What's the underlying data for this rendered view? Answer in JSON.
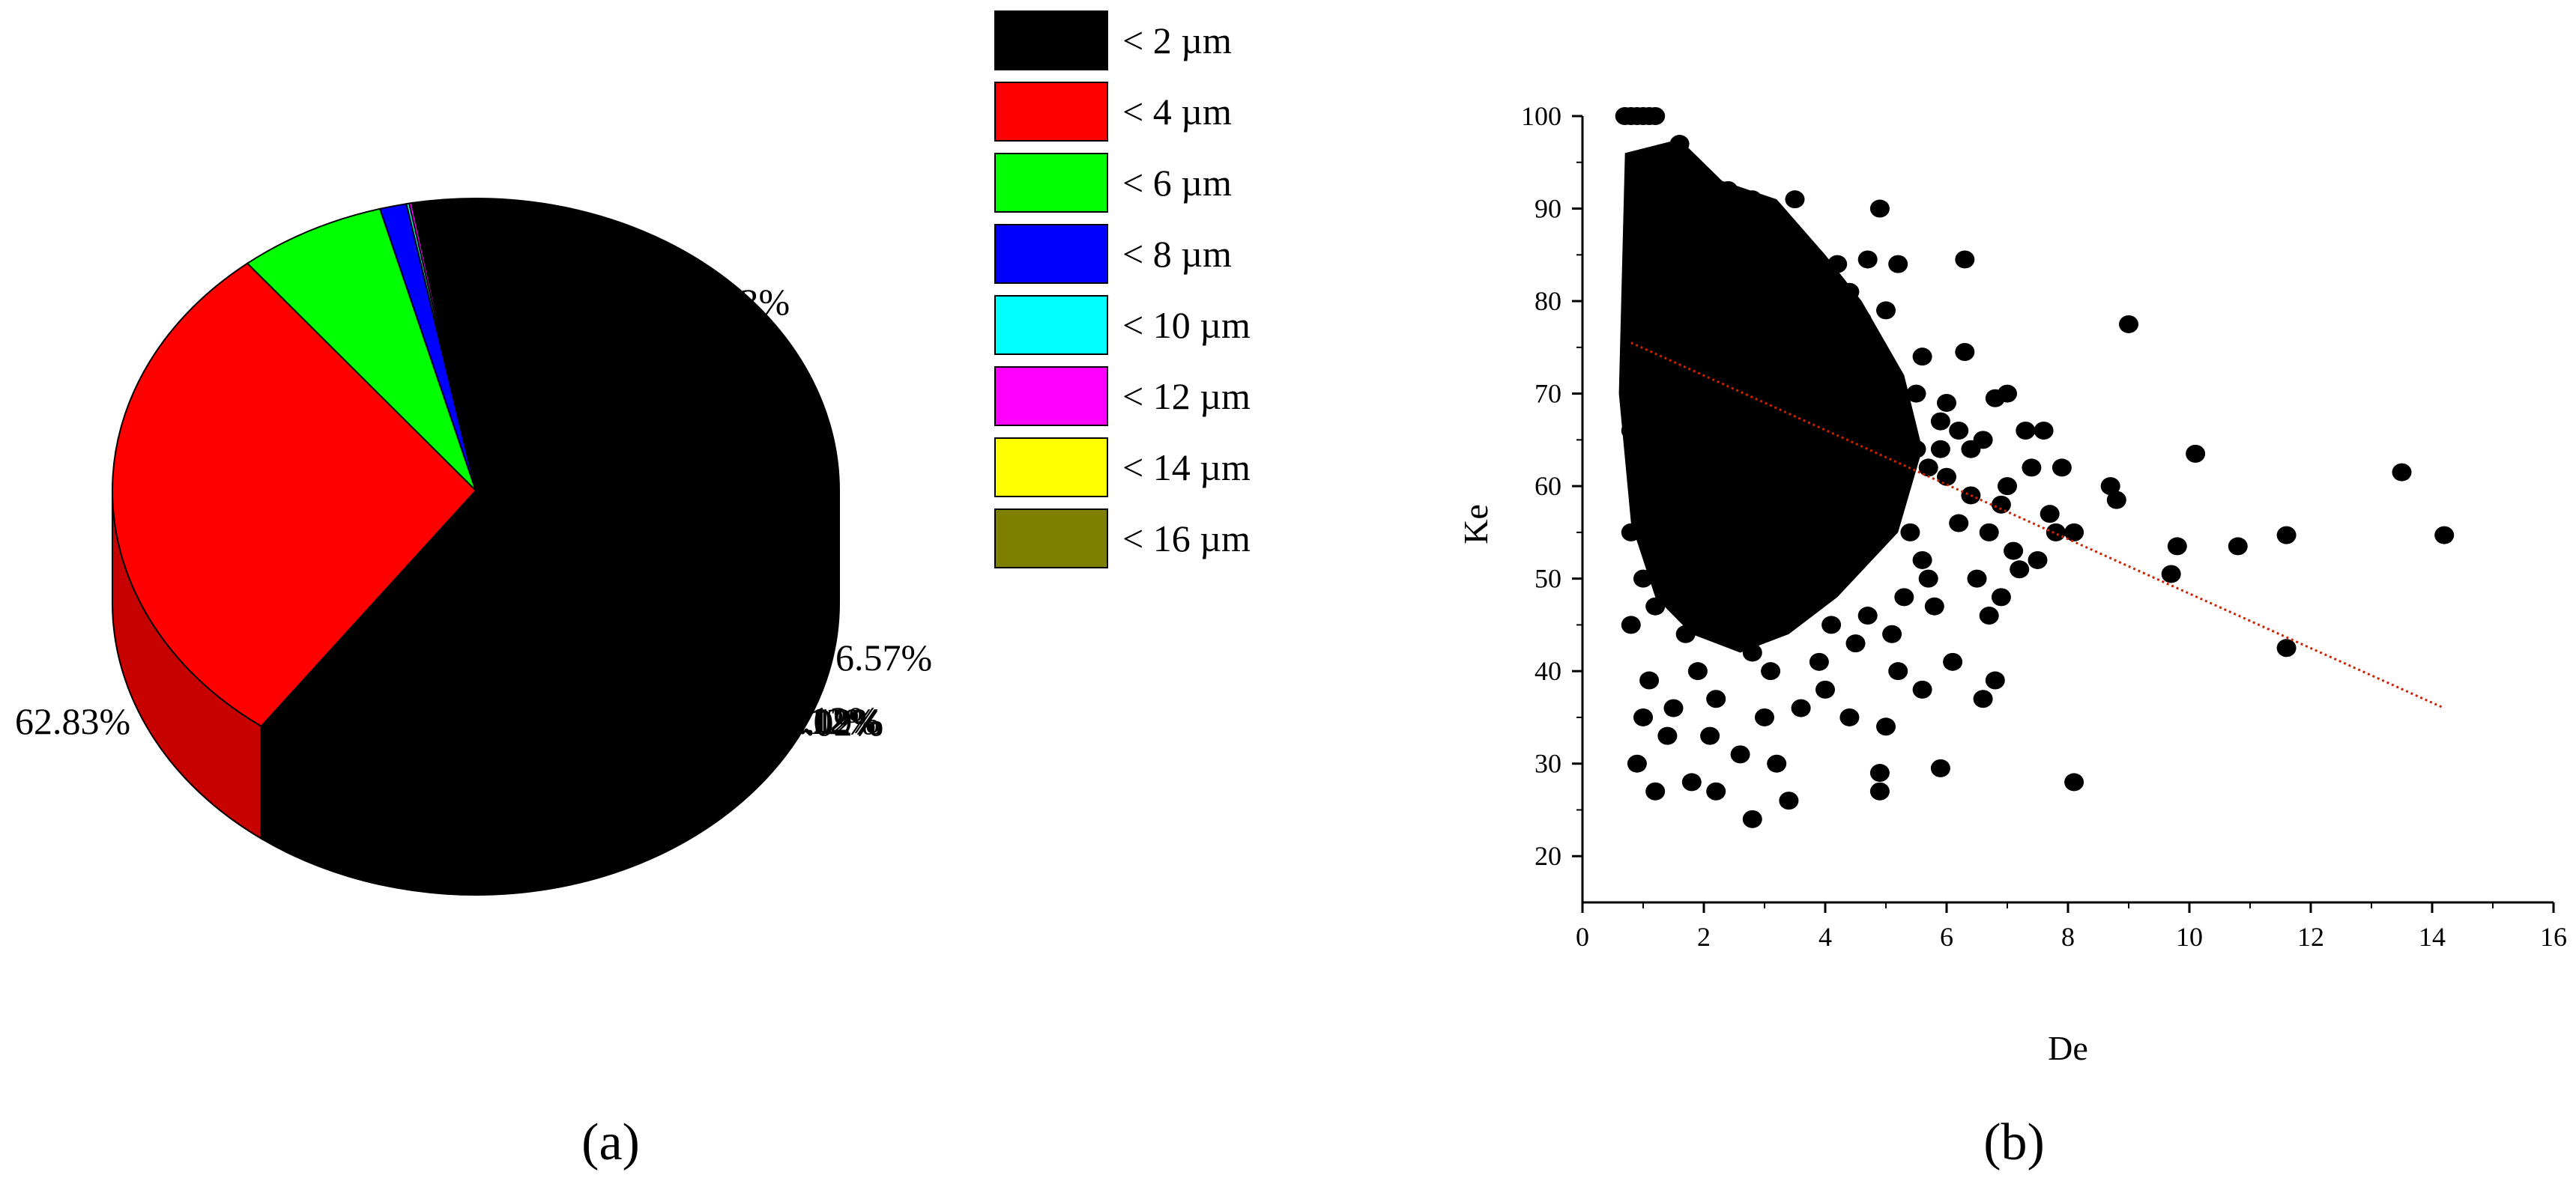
{
  "chart_data": [
    {
      "type": "pie",
      "title": "",
      "subplot_label": "(a)",
      "categories": [
        "< 2  µm",
        "< 4  µm",
        "< 6  µm",
        "< 8  µm",
        "< 10  µm",
        "< 12  µm",
        "< 14  µm",
        "< 16  µm"
      ],
      "values": [
        62.83,
        29.13,
        6.57,
        1.19,
        0.12,
        0.12,
        0.02,
        0.02
      ],
      "data_labels": [
        "62.83%",
        "29.13%",
        "6.57%",
        "1.19%",
        "0.12%",
        "0.12%",
        "0.02%",
        "0.02%"
      ],
      "colors": [
        "#000000",
        "#ff0000",
        "#00ff00",
        "#0000ff",
        "#00ffff",
        "#ff00ff",
        "#ffff00",
        "#808000"
      ],
      "style": "3d",
      "legend_position": "right"
    },
    {
      "type": "scatter",
      "title": "",
      "subplot_label": "(b)",
      "xlabel": "De",
      "ylabel": "Ke",
      "xlim": [
        0,
        16
      ],
      "ylim": [
        15,
        100
      ],
      "x_ticks": [
        "0",
        "2",
        "4",
        "6",
        "8",
        "10",
        "12",
        "14",
        "16"
      ],
      "y_ticks": [
        "20",
        "30",
        "40",
        "50",
        "60",
        "70",
        "80",
        "90",
        "100"
      ],
      "grid": false,
      "marker_color": "#000000",
      "trendline": {
        "x": [
          0.8,
          14.2
        ],
        "y": [
          75.5,
          36
        ],
        "color": "#cc2200",
        "style": "dotted"
      },
      "points": [
        [
          0.7,
          100
        ],
        [
          0.8,
          100
        ],
        [
          0.9,
          100
        ],
        [
          1.0,
          100
        ],
        [
          1.1,
          100
        ],
        [
          1.2,
          100
        ],
        [
          1.6,
          97
        ],
        [
          1.4,
          95
        ],
        [
          1.2,
          93
        ],
        [
          2.4,
          92
        ],
        [
          2.8,
          91
        ],
        [
          3.5,
          91
        ],
        [
          1.0,
          90
        ],
        [
          4.9,
          90
        ],
        [
          2.0,
          88
        ],
        [
          3.0,
          86
        ],
        [
          4.2,
          84
        ],
        [
          4.7,
          84.5
        ],
        [
          5.2,
          84
        ],
        [
          6.3,
          84.5
        ],
        [
          1.0,
          82
        ],
        [
          2.5,
          82
        ],
        [
          3.6,
          80
        ],
        [
          4.4,
          81
        ],
        [
          5.0,
          79
        ],
        [
          9.0,
          77.5
        ],
        [
          0.9,
          80
        ],
        [
          2.2,
          78
        ],
        [
          3.8,
          76
        ],
        [
          4.8,
          75
        ],
        [
          5.6,
          74
        ],
        [
          6.3,
          74.5
        ],
        [
          1.5,
          74
        ],
        [
          2.7,
          72
        ],
        [
          3.4,
          70
        ],
        [
          4.1,
          71
        ],
        [
          5.5,
          70
        ],
        [
          6.0,
          69
        ],
        [
          6.8,
          69.5
        ],
        [
          7.0,
          70
        ],
        [
          1.1,
          70
        ],
        [
          2.1,
          68
        ],
        [
          3.1,
          66
        ],
        [
          4.5,
          67
        ],
        [
          5.3,
          66
        ],
        [
          5.9,
          64
        ],
        [
          6.6,
          65
        ],
        [
          7.3,
          66
        ],
        [
          7.6,
          66
        ],
        [
          10.1,
          63.5
        ],
        [
          1.3,
          66.5
        ],
        [
          2.6,
          63
        ],
        [
          3.7,
          62
        ],
        [
          4.6,
          61
        ],
        [
          5.1,
          60
        ],
        [
          6.4,
          59
        ],
        [
          6.9,
          58
        ],
        [
          7.4,
          62
        ],
        [
          7.9,
          62
        ],
        [
          8.7,
          60
        ],
        [
          8.8,
          58.5
        ],
        [
          13.5,
          61.5
        ],
        [
          1.8,
          60
        ],
        [
          2.9,
          58
        ],
        [
          4.0,
          57
        ],
        [
          5.4,
          55
        ],
        [
          6.2,
          56
        ],
        [
          7.7,
          57
        ],
        [
          8.1,
          55
        ],
        [
          9.8,
          53.5
        ],
        [
          10.8,
          53.5
        ],
        [
          11.6,
          54.7
        ],
        [
          14.2,
          54.7
        ],
        [
          0.8,
          55
        ],
        [
          2.0,
          53
        ],
        [
          3.3,
          52
        ],
        [
          4.3,
          51
        ],
        [
          5.7,
          50
        ],
        [
          6.5,
          50
        ],
        [
          7.2,
          51
        ],
        [
          7.5,
          52
        ],
        [
          9.7,
          50.5
        ],
        [
          1.0,
          50
        ],
        [
          2.4,
          48
        ],
        [
          3.5,
          47
        ],
        [
          4.7,
          46
        ],
        [
          5.8,
          47
        ],
        [
          6.7,
          46
        ],
        [
          11.6,
          42.5
        ],
        [
          0.8,
          45
        ],
        [
          1.7,
          44
        ],
        [
          2.8,
          42
        ],
        [
          3.9,
          41
        ],
        [
          5.2,
          40
        ],
        [
          6.1,
          41
        ],
        [
          6.8,
          39
        ],
        [
          1.1,
          39
        ],
        [
          2.2,
          37
        ],
        [
          3.6,
          36
        ],
        [
          4.4,
          35
        ],
        [
          5.0,
          34
        ],
        [
          6.6,
          37
        ],
        [
          1.4,
          33
        ],
        [
          2.6,
          31
        ],
        [
          3.2,
          30
        ],
        [
          4.9,
          29
        ],
        [
          5.9,
          29.5
        ],
        [
          8.1,
          28
        ],
        [
          0.9,
          30
        ],
        [
          1.8,
          28
        ],
        [
          2.2,
          27
        ],
        [
          3.4,
          26
        ],
        [
          4.9,
          27
        ],
        [
          2.8,
          24
        ],
        [
          1.2,
          27
        ],
        [
          3.0,
          88
        ],
        [
          1.9,
          84
        ],
        [
          2.3,
          76
        ],
        [
          1.6,
          71
        ],
        [
          3.9,
          68
        ],
        [
          2.5,
          65
        ],
        [
          4.3,
          62
        ],
        [
          1.4,
          57
        ],
        [
          3.7,
          55
        ],
        [
          2.3,
          50
        ],
        [
          4.1,
          45
        ],
        [
          1.9,
          40
        ],
        [
          3.0,
          35
        ],
        [
          5.5,
          64
        ],
        [
          6.0,
          61
        ],
        [
          5.0,
          57
        ],
        [
          5.6,
          52
        ],
        [
          4.5,
          43
        ],
        [
          2.7,
          45
        ],
        [
          3.3,
          78
        ],
        [
          4.0,
          74
        ],
        [
          1.7,
          86
        ],
        [
          2.1,
          90
        ],
        [
          1.3,
          77
        ],
        [
          0.9,
          62
        ],
        [
          1.2,
          47
        ],
        [
          2.9,
          70
        ],
        [
          3.8,
          64
        ],
        [
          2.0,
          61
        ],
        [
          4.8,
          69
        ],
        [
          6.9,
          48
        ],
        [
          7.1,
          53
        ],
        [
          6.4,
          64
        ],
        [
          5.3,
          48
        ],
        [
          3.1,
          40
        ],
        [
          2.6,
          55
        ],
        [
          4.2,
          52
        ],
        [
          1.5,
          36
        ],
        [
          1.1,
          60
        ],
        [
          3.4,
          59
        ],
        [
          2.4,
          71
        ],
        [
          1.8,
          65
        ],
        [
          3.6,
          72
        ],
        [
          4.6,
          78
        ],
        [
          5.7,
          62
        ],
        [
          6.2,
          66
        ],
        [
          7.0,
          60
        ],
        [
          1.6,
          51
        ],
        [
          2.8,
          49
        ],
        [
          3.9,
          48
        ],
        [
          5.1,
          44
        ],
        [
          0.8,
          66
        ],
        [
          1.3,
          82
        ],
        [
          2.2,
          85
        ],
        [
          2.6,
          79
        ],
        [
          3.2,
          83
        ],
        [
          4.4,
          65
        ],
        [
          5.9,
          67
        ],
        [
          6.7,
          55
        ],
        [
          7.8,
          55
        ],
        [
          1.0,
          35
        ],
        [
          2.1,
          33
        ],
        [
          4.0,
          38
        ],
        [
          5.6,
          38
        ]
      ]
    }
  ]
}
